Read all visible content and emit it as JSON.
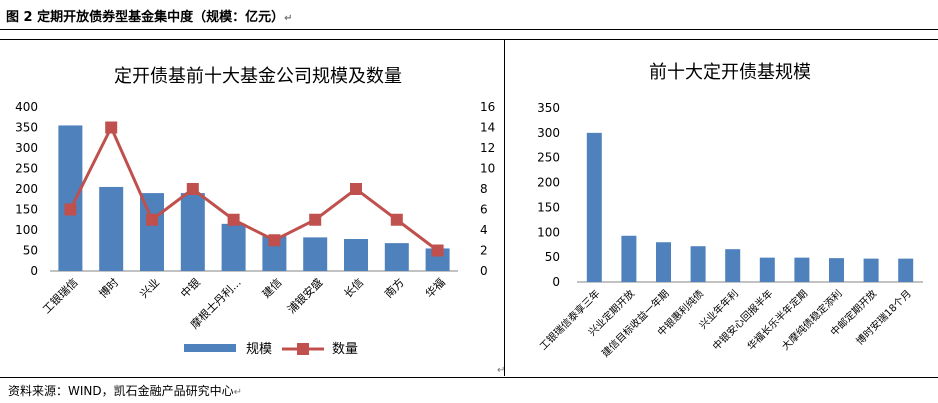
{
  "caption": "图 2 定期开放债券型基金集中度（规模：亿元）",
  "source": "资料来源：WIND，凯石金融产品研究中心",
  "paragraph_mark": "↵",
  "chart_data": [
    {
      "type": "bar",
      "title": "定开债基前十大基金公司规模及数量",
      "categories": [
        "工银瑞信",
        "博时",
        "兴业",
        "中银",
        "摩根士丹利...",
        "建信",
        "浦银安盛",
        "长信",
        "南方",
        "华福"
      ],
      "series": [
        {
          "name": "规模",
          "type": "bar",
          "axis": "left",
          "color": "#4F81BD",
          "values": [
            355,
            205,
            190,
            190,
            115,
            85,
            82,
            78,
            68,
            55
          ]
        },
        {
          "name": "数量",
          "type": "line",
          "axis": "right",
          "color": "#C0504D",
          "values": [
            6,
            14,
            5,
            8,
            5,
            3,
            5,
            8,
            5,
            2
          ]
        }
      ],
      "ylim_left": [
        0,
        400
      ],
      "yticks_left": [
        0,
        50,
        100,
        150,
        200,
        250,
        300,
        350,
        400
      ],
      "ylim_right": [
        0,
        16
      ],
      "yticks_right": [
        0,
        2,
        4,
        6,
        8,
        10,
        12,
        14,
        16
      ],
      "legend": "bottom",
      "grid": false
    },
    {
      "type": "bar",
      "title": "前十大定开债基规模",
      "categories": [
        "工银瑞信泰享三年",
        "兴业定期开放",
        "建信目标收益一年期",
        "中银惠利纯债",
        "兴业年年利",
        "中银安心回报半年",
        "华福长乐半年定期",
        "大摩纯债稳定添利",
        "中邮定期开放",
        "博时安瑞18个月"
      ],
      "series": [
        {
          "name": "",
          "color": "#4F81BD",
          "values": [
            300,
            93,
            80,
            72,
            66,
            49,
            49,
            48,
            47,
            47
          ]
        }
      ],
      "ylim": [
        0,
        350
      ],
      "yticks": [
        0,
        50,
        100,
        150,
        200,
        250,
        300,
        350
      ],
      "grid": false
    }
  ]
}
